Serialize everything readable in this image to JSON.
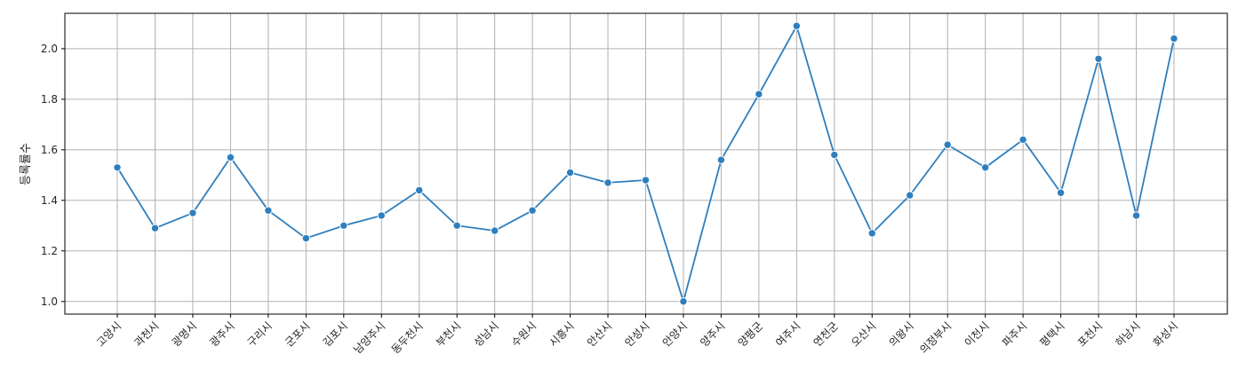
{
  "chart_data": {
    "type": "line",
    "title": "",
    "xlabel": "",
    "ylabel": "등록률수",
    "categories": [
      "고양시",
      "과천시",
      "광명시",
      "광주시",
      "구리시",
      "군포시",
      "김포시",
      "남양주시",
      "동두천시",
      "부천시",
      "성남시",
      "수원시",
      "시흥시",
      "안산시",
      "안성시",
      "안양시",
      "양주시",
      "양평군",
      "여주시",
      "연천군",
      "오산시",
      "의왕시",
      "의정부시",
      "이천시",
      "파주시",
      "평택시",
      "포천시",
      "하남시",
      "화성시"
    ],
    "series": [
      {
        "name": "",
        "values": [
          1.53,
          1.29,
          1.35,
          1.57,
          1.36,
          1.25,
          1.3,
          1.34,
          1.44,
          1.3,
          1.28,
          1.36,
          1.51,
          1.47,
          1.48,
          1.0,
          1.56,
          1.82,
          2.09,
          1.58,
          1.27,
          1.42,
          1.62,
          1.53,
          1.64,
          1.43,
          1.96,
          1.34,
          2.04
        ]
      }
    ],
    "yticks": [
      "1.0",
      "1.2",
      "1.4",
      "1.6",
      "1.8",
      "2.0"
    ],
    "ylim": [
      0.95,
      2.14
    ],
    "grid": true,
    "marker": "circle",
    "line_color": "#2e7fbf"
  }
}
